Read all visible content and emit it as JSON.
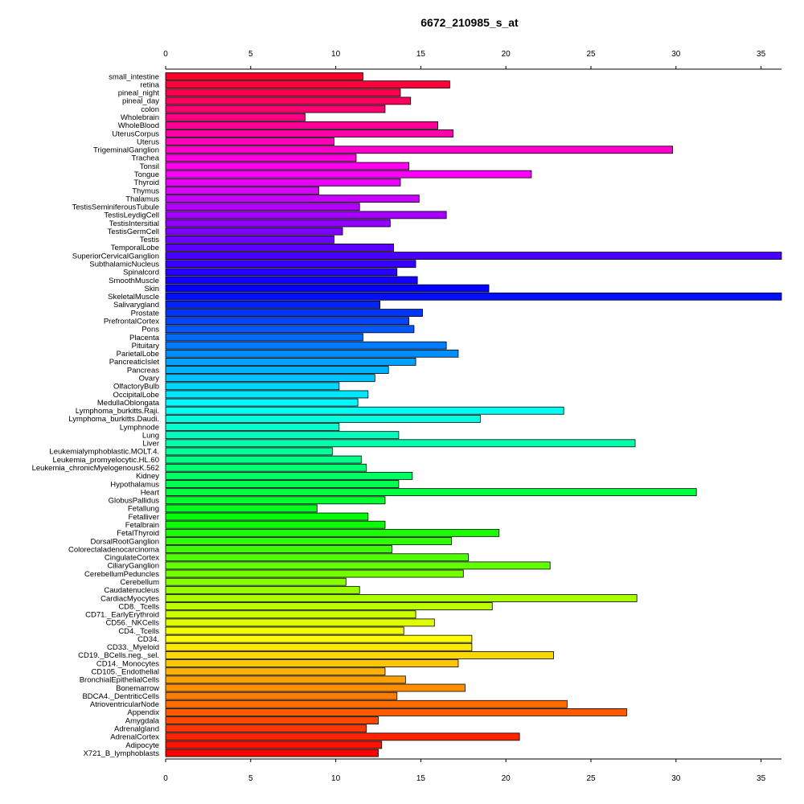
{
  "chart_data": {
    "type": "bar",
    "orientation": "horizontal",
    "title": "6672_210985_s_at",
    "xlabel": "",
    "ylabel": "",
    "xlim": [
      0,
      36.2
    ],
    "x_ticks": [
      0,
      5,
      10,
      15,
      20,
      25,
      30,
      35
    ],
    "x_axis_position": "top and bottom",
    "grid": false,
    "legend": "none",
    "color_scheme": "rainbow",
    "categories": [
      "small_intestine",
      "retina",
      "pineal_night",
      "pineal_day",
      "colon",
      "Wholebrain",
      "WholeBlood",
      "UterusCorpus",
      "Uterus",
      "TrigeminalGanglion",
      "Trachea",
      "Tonsil",
      "Tongue",
      "Thyroid",
      "Thymus",
      "Thalamus",
      "TestisSeminiferousTubule",
      "TestisLeydigCell",
      "TestisIntersitial",
      "TestisGermCell",
      "Testis",
      "TemporalLobe",
      "SuperiorCervicalGanglion",
      "SubthalamicNucleus",
      "Spinalcord",
      "SmoothMuscle",
      "Skin",
      "SkeletalMuscle",
      "Salivarygland",
      "Prostate",
      "PrefrontalCortex",
      "Pons",
      "Placenta",
      "Pituitary",
      "ParietalLobe",
      "PancreaticIslet",
      "Pancreas",
      "Ovary",
      "OlfactoryBulb",
      "OccipitalLobe",
      "MedullaOblongata",
      "Lymphoma_burkitts.Raji.",
      "Lymphoma_burkitts.Daudi.",
      "Lymphnode",
      "Lung",
      "Liver",
      "Leukemialymphoblastic.MOLT.4.",
      "Leukemia_promyelocytic.HL.60",
      "Leukemia_chronicMyelogenousK.562",
      "Kidney",
      "Hypothalamus",
      "Heart",
      "GlobusPallidus",
      "Fetallung",
      "Fetalliver",
      "Fetalbrain",
      "FetalThyroid",
      "DorsalRootGanglion",
      "Colorectaladenocarcinoma",
      "CingulateCortex",
      "CiliaryGanglion",
      "CerebellumPeduncles",
      "Cerebellum",
      "Caudatenucleus",
      "CardiacMyocytes",
      "CD8._Tcells",
      "CD71._EarlyErythroid",
      "CD56._NKCells",
      "CD4._Tcells",
      "CD34.",
      "CD33._Myeloid",
      "CD19._BCells.neg._sel.",
      "CD14._Monocytes",
      "CD105._Endothelial",
      "BronchialEpithelialCells",
      "Bonemarrow",
      "BDCA4._DentriticCells",
      "AtrioventricularNode",
      "Appendix",
      "Amygdala",
      "Adrenalgland",
      "AdrenalCortex",
      "Adipocyte",
      "X721_B_lymphoblasts"
    ],
    "values": [
      11.6,
      16.7,
      13.8,
      14.4,
      12.9,
      8.2,
      16.0,
      16.9,
      9.9,
      29.8,
      11.2,
      14.3,
      21.5,
      13.8,
      9.0,
      14.9,
      11.4,
      16.5,
      13.2,
      10.4,
      9.9,
      13.4,
      36.2,
      14.7,
      13.6,
      14.8,
      19.0,
      36.2,
      12.6,
      15.1,
      14.3,
      14.6,
      11.6,
      16.5,
      17.2,
      14.7,
      13.1,
      12.3,
      10.2,
      11.9,
      11.3,
      23.4,
      18.5,
      10.2,
      13.7,
      27.6,
      9.8,
      11.5,
      11.8,
      14.5,
      13.7,
      31.2,
      12.9,
      8.9,
      11.9,
      12.9,
      19.6,
      16.8,
      13.3,
      17.8,
      22.6,
      17.5,
      10.6,
      11.4,
      27.7,
      19.2,
      14.7,
      15.8,
      14.0,
      18.0,
      18.0,
      22.8,
      17.2,
      12.9,
      14.1,
      17.6,
      13.6,
      23.6,
      27.1,
      12.5,
      11.8,
      20.8,
      12.7,
      12.5
    ]
  }
}
